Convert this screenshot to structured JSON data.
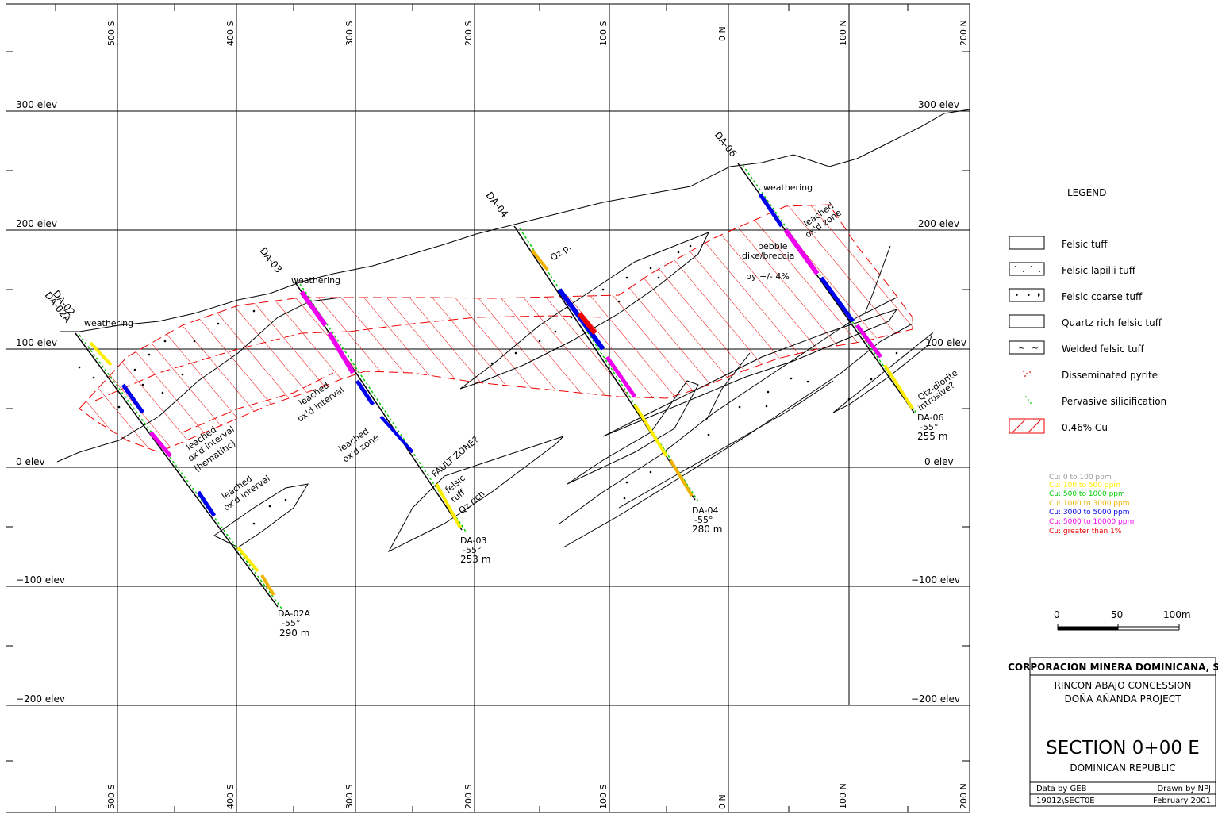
{
  "northings": [
    "500 S",
    "400 S",
    "300 S",
    "200 S",
    "100 S",
    "0 N",
    "100 N",
    "200 N"
  ],
  "elevations": {
    "e300": "300 elev",
    "e200": "200 elev",
    "e100": "100 elev",
    "e0": "0 elev",
    "em100": "−100 elev",
    "em200": "−200 elev"
  },
  "holes": {
    "da02": {
      "name": "DA-02",
      "name_a": "DA-02A",
      "label": "DA-02A",
      "dip": "-55°",
      "depth": "290 m"
    },
    "da03": {
      "name": "DA-03",
      "label": "DA-03",
      "dip": "-55°",
      "depth": "253 m"
    },
    "da04": {
      "name": "DA-04",
      "label": "DA-04",
      "dip": "-55°",
      "depth": "280 m"
    },
    "da06": {
      "name": "DA-06",
      "label": "DA-06",
      "dip": "-55°",
      "depth": "255 m"
    }
  },
  "annotations": {
    "weathering": "weathering",
    "leached_interval": "leached",
    "oxd_interval": "ox'd interval",
    "hematitic": "(hematitic)",
    "oxd_zone": "ox'd zone",
    "qz_p": "Qz p.",
    "fault_zone": "FAULT ZONE?",
    "felsic": "felsic",
    "tuff": "tuff",
    "qz_rich": "Qz rich",
    "pebble": "pebble",
    "dike_breccia": "dike/breccia",
    "py": "py  +/-  4%",
    "qtz_diorite": "Qtz-diorite",
    "intrusive": "intrusive?"
  },
  "legend": {
    "title": "LEGEND",
    "items": [
      "Felsic  tuff",
      "Felsic  lapilli  tuff",
      "Felsic  coarse  tuff",
      "Quartz rich felsic  tuff",
      "Welded  felsic  tuff",
      "Disseminated  pyrite",
      "Pervasive  silicification",
      "0.46%  Cu"
    ]
  },
  "cu_ranges": [
    {
      "text": "Cu:  0  to  100  ppm",
      "color": "#9a9a9a"
    },
    {
      "text": "Cu:  100  to  500  ppm",
      "color": "#ffee00"
    },
    {
      "text": "Cu:  500  to  1000  ppm",
      "color": "#00cc00"
    },
    {
      "text": "Cu:  1000  to  3000  ppm",
      "color": "#f0b400"
    },
    {
      "text": "Cu:  3000  to  5000  ppm",
      "color": "#0000ee"
    },
    {
      "text": "Cu:  5000  to  10000  ppm",
      "color": "#ee00ee"
    },
    {
      "text": "Cu:  greater  than  1%",
      "color": "#ee0000"
    }
  ],
  "scale_bar": {
    "l0": "0",
    "l50": "50",
    "l100": "100m"
  },
  "title_block": {
    "company": "CORPORACION MINERA DOMINICANA, S. A.",
    "concession": "RINCON  ABAJO  CONCESSION",
    "project": "DOÑA  AÑANDA  PROJECT",
    "section": "SECTION  0+00  E",
    "country": "DOMINICAN  REPUBLIC",
    "data_by": "Data  by  GEB",
    "drawn_by": "Drawn  by  NPJ",
    "file": "19012\\SECT0E",
    "date": "February  2001"
  },
  "colors": {
    "cu_zone": "#ee0000",
    "silicification": "#00cc00",
    "pyrite": "#cc0000",
    "assay_low": "#ffee00",
    "assay_mid": "#0000ee",
    "assay_high": "#ee00ee",
    "assay_ore": "#f0b400"
  }
}
